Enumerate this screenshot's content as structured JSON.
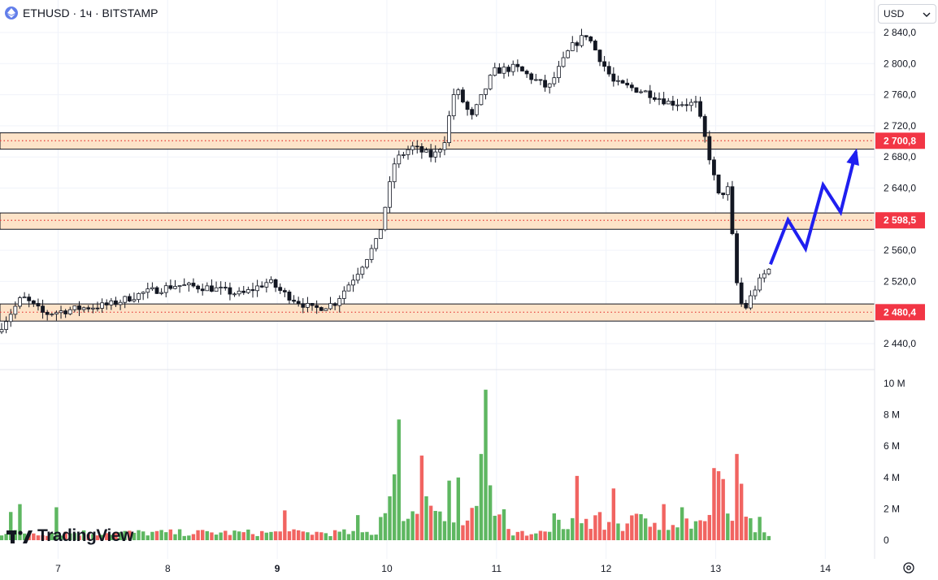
{
  "header": {
    "title": "ETHUSD · 1ч · BITSTAMP"
  },
  "currency_selector": {
    "value": "USD"
  },
  "logo": {
    "text": "TradingView"
  },
  "colors": {
    "up": "#4caf50",
    "down": "#ef5350",
    "zone_fill": "#fde3c8",
    "label_bg": "#f23645",
    "arrow": "#1f1ff0"
  },
  "chart_data": [
    {
      "type": "candlestick",
      "title": "ETHUSD · 1ч · BITSTAMP",
      "ylim": [
        2430,
        2880
      ],
      "y_ticks": [
        "2 840,0",
        "2 800,0",
        "2 760,0",
        "2 720,0",
        "2 680,0",
        "2 640,0",
        "2 560,0",
        "2 520,0",
        "2 440,0"
      ],
      "y_tick_values": [
        2840,
        2800,
        2760,
        2720,
        2680,
        2640,
        2560,
        2520,
        2440
      ],
      "x_ticks": [
        "7",
        "8",
        "9",
        "10",
        "11",
        "12",
        "13",
        "14"
      ],
      "x_tick_values": [
        7,
        8,
        9,
        10,
        11,
        12,
        13,
        14
      ],
      "xlim": [
        6.47,
        14.45
      ],
      "zones": [
        {
          "level": 2700.8,
          "label": "2 700,8",
          "low": 2690,
          "high": 2711
        },
        {
          "level": 2598.5,
          "label": "2 598,5",
          "low": 2587,
          "high": 2608
        },
        {
          "level": 2480.4,
          "label": "2 480,4",
          "low": 2469,
          "high": 2491
        }
      ],
      "anchors": [
        [
          6.47,
          2455
        ],
        [
          6.7,
          2500
        ],
        [
          6.9,
          2478
        ],
        [
          7.2,
          2485
        ],
        [
          7.5,
          2490
        ],
        [
          7.8,
          2505
        ],
        [
          8.1,
          2515
        ],
        [
          8.4,
          2512
        ],
        [
          8.7,
          2503
        ],
        [
          8.95,
          2520
        ],
        [
          9.08,
          2505
        ],
        [
          9.35,
          2484
        ],
        [
          9.55,
          2492
        ],
        [
          9.75,
          2530
        ],
        [
          9.95,
          2575
        ],
        [
          10.1,
          2675
        ],
        [
          10.25,
          2693
        ],
        [
          10.45,
          2680
        ],
        [
          10.55,
          2700
        ],
        [
          10.65,
          2770
        ],
        [
          10.8,
          2730
        ],
        [
          11.0,
          2790
        ],
        [
          11.2,
          2795
        ],
        [
          11.5,
          2768
        ],
        [
          11.7,
          2820
        ],
        [
          11.85,
          2838
        ],
        [
          11.95,
          2812
        ],
        [
          12.1,
          2775
        ],
        [
          12.4,
          2763
        ],
        [
          12.6,
          2750
        ],
        [
          12.85,
          2748
        ],
        [
          12.95,
          2692
        ],
        [
          13.05,
          2630
        ],
        [
          13.15,
          2640
        ],
        [
          13.2,
          2530
        ],
        [
          13.28,
          2480
        ],
        [
          13.38,
          2510
        ],
        [
          13.5,
          2535
        ]
      ],
      "projection": [
        [
          13.5,
          2542
        ],
        [
          13.66,
          2599
        ],
        [
          13.82,
          2562
        ],
        [
          13.98,
          2644
        ],
        [
          14.14,
          2609
        ],
        [
          14.28,
          2687
        ]
      ]
    },
    {
      "type": "bar",
      "ylabel": "",
      "ylim": [
        0,
        10500000
      ],
      "y_ticks": [
        "10 M",
        "8 M",
        "6 M",
        "4 M",
        "2 M",
        "0"
      ],
      "y_tick_values": [
        10000000,
        8000000,
        6000000,
        4000000,
        2000000,
        0
      ],
      "spikes": [
        [
          6.57,
          1800000
        ],
        [
          6.65,
          2300000
        ],
        [
          6.95,
          2100000
        ],
        [
          9.05,
          1900000
        ],
        [
          9.7,
          1600000
        ],
        [
          10.03,
          2800000
        ],
        [
          10.05,
          4200000
        ],
        [
          10.08,
          7700000
        ],
        [
          10.3,
          5400000
        ],
        [
          10.35,
          2800000
        ],
        [
          10.57,
          3800000
        ],
        [
          10.62,
          4000000
        ],
        [
          10.85,
          5500000
        ],
        [
          10.88,
          9600000
        ],
        [
          10.93,
          3500000
        ],
        [
          11.72,
          4100000
        ],
        [
          12.04,
          3300000
        ],
        [
          12.52,
          2300000
        ],
        [
          12.68,
          2100000
        ],
        [
          12.98,
          4600000
        ],
        [
          13.0,
          4400000
        ],
        [
          13.04,
          3900000
        ],
        [
          13.17,
          5500000
        ],
        [
          13.22,
          3600000
        ]
      ]
    }
  ]
}
